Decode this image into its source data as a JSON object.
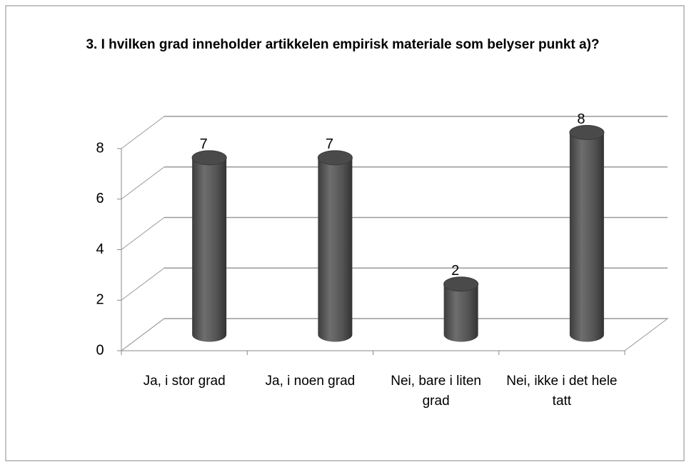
{
  "chart_data": {
    "type": "bar3d",
    "title": "3.  I hvilken grad inneholder artikkelen empirisk materiale som belyser punkt a)?",
    "categories": [
      "Ja, i stor grad",
      "Ja, i noen grad",
      "Nei, bare i liten grad",
      "Nei, ikke i det hele tatt"
    ],
    "values": [
      7,
      7,
      2,
      8
    ],
    "color": "#555555",
    "ylim": [
      0,
      8
    ],
    "yticks": [
      0,
      2,
      4,
      6,
      8
    ],
    "grid": true
  }
}
